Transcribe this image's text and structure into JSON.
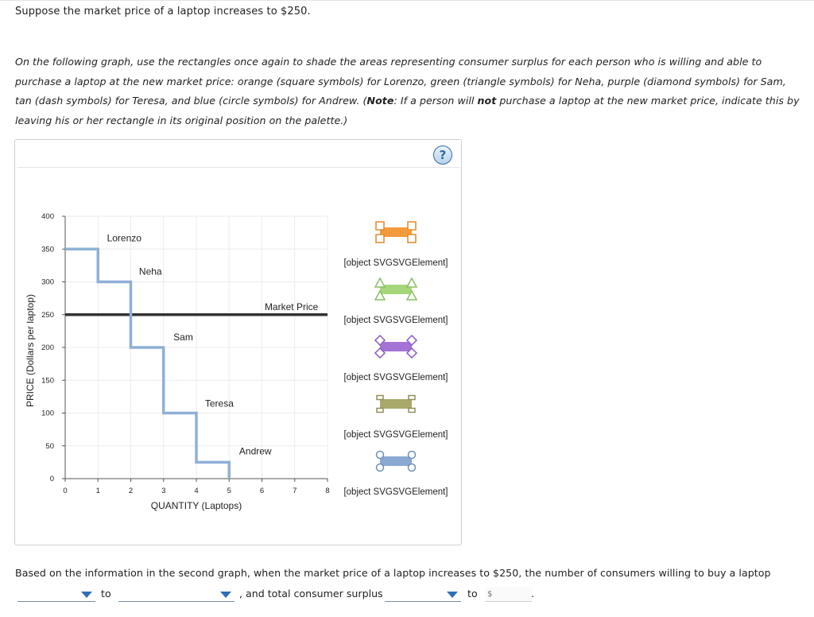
{
  "intro": "Suppose the market price of a laptop increases to $250.",
  "instructions": {
    "part1": "On the following graph, use the rectangles once again to shade the areas representing consumer surplus for each person who is willing and able to purchase a laptop at the new market price: orange (square symbols) for Lorenzo, green (triangle symbols) for Neha, purple (diamond symbols) for Sam, tan (dash symbols) for Teresa, and blue (circle symbols) for Andrew. (",
    "note": "Note",
    "part2": ": If a person will ",
    "not": "not",
    "part3": " purchase a laptop at the new market price, indicate this by leaving his or her rectangle in its original position on the palette.)"
  },
  "help_label": "?",
  "chart_data": {
    "type": "line",
    "xlabel": "QUANTITY (Laptops)",
    "ylabel": "PRICE (Dollars per laptop)",
    "xlim": [
      0,
      8
    ],
    "ylim": [
      0,
      400
    ],
    "xticks": [
      0,
      1,
      2,
      3,
      4,
      5,
      6,
      7,
      8
    ],
    "yticks": [
      0,
      50,
      100,
      150,
      200,
      250,
      300,
      350,
      400
    ],
    "grid": true,
    "demand_color": "#8fb0d6",
    "market_color": "#333333",
    "demand_steps": [
      {
        "name": "Lorenzo",
        "from": 0,
        "to": 1,
        "price": 350
      },
      {
        "name": "Neha",
        "from": 1,
        "to": 2,
        "price": 300
      },
      {
        "name": "Sam",
        "from": 2,
        "to": 3,
        "price": 200
      },
      {
        "name": "Teresa",
        "from": 3,
        "to": 4,
        "price": 100
      },
      {
        "name": "Andrew",
        "from": 4,
        "to": 5,
        "price": 25
      }
    ],
    "step_labels": [
      {
        "text": "Lorenzo",
        "x": 1.8,
        "y": 362
      },
      {
        "text": "Neha",
        "x": 2.6,
        "y": 311
      },
      {
        "text": "Sam",
        "x": 3.6,
        "y": 211
      },
      {
        "text": "Teresa",
        "x": 4.7,
        "y": 110
      },
      {
        "text": "Andrew",
        "x": 5.8,
        "y": 37
      }
    ],
    "market_price": 250,
    "market_label": "Market Price"
  },
  "palette": [
    {
      "name": "Lorenzo",
      "color": "#f29a3d",
      "border": "#e08a2a",
      "symbol": "square"
    },
    {
      "name": "Neha",
      "color": "#a6d67a",
      "border": "#88c060",
      "symbol": "triangle"
    },
    {
      "name": "Sam",
      "color": "#a374d6",
      "border": "#8a5ac4",
      "symbol": "diamond"
    },
    {
      "name": "Teresa",
      "color": "#a8aa6c",
      "border": "#8f915a",
      "symbol": "dash"
    },
    {
      "name": "Andrew",
      "color": "#8aa8d2",
      "border": "#6f8fbf",
      "symbol": "circle"
    }
  ],
  "question": {
    "line1": "Based on the information in the second graph, when the market price of a laptop increases to $250, the number of consumers willing to buy a laptop",
    "to1": "to",
    "and_text": ", and total consumer surplus",
    "to2": "to",
    "dollar_placeholder": "$",
    "period": "."
  }
}
